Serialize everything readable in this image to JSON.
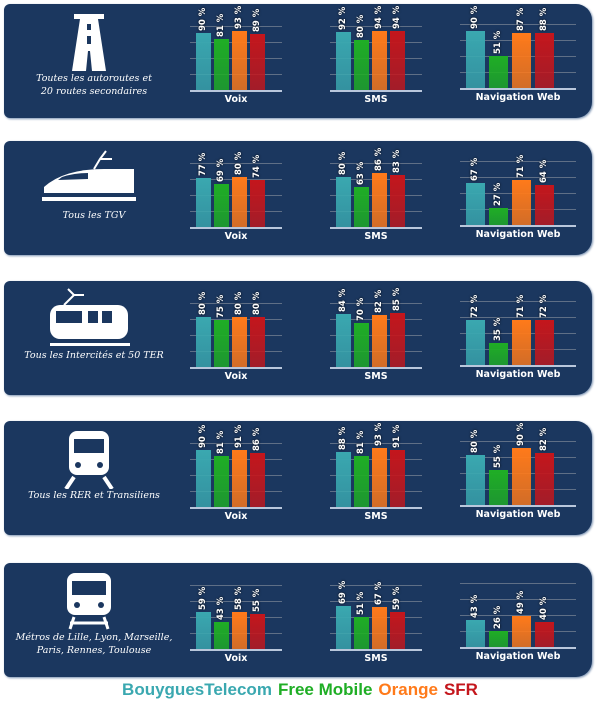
{
  "chart_data": {
    "type": "bar",
    "categories": [
      "Voix",
      "SMS",
      "Navigation Web"
    ],
    "series_names": [
      "BouyguesTelecom",
      "Free Mobile",
      "Orange",
      "SFR"
    ],
    "colors": {
      "BouyguesTelecom": "#3aa8b0",
      "Free Mobile": "#1fae25",
      "Orange": "#ff7a1a",
      "SFR": "#c4161c"
    },
    "ylim": [
      0,
      100
    ],
    "value_suffix": " %",
    "groups": [
      {
        "caption": [
          "Toutes les autoroutes et",
          "20 routes secondaires"
        ],
        "icon": "highway-icon",
        "values": {
          "Voix": [
            90,
            81,
            93,
            89
          ],
          "SMS": [
            92,
            80,
            94,
            94
          ],
          "Navigation Web": [
            90,
            51,
            87,
            88
          ]
        }
      },
      {
        "caption": [
          "Tous les TGV"
        ],
        "icon": "high-speed-train-icon",
        "values": {
          "Voix": [
            77,
            69,
            80,
            74
          ],
          "SMS": [
            80,
            63,
            86,
            83
          ],
          "Navigation Web": [
            67,
            27,
            71,
            64
          ]
        }
      },
      {
        "caption": [
          "Tous les Intercités et 50 TER"
        ],
        "icon": "intercity-train-icon",
        "values": {
          "Voix": [
            80,
            75,
            80,
            80
          ],
          "SMS": [
            84,
            70,
            82,
            85
          ],
          "Navigation Web": [
            72,
            35,
            71,
            72
          ]
        }
      },
      {
        "caption": [
          "Tous les RER et Transiliens"
        ],
        "icon": "rer-train-icon",
        "values": {
          "Voix": [
            90,
            81,
            91,
            86
          ],
          "SMS": [
            88,
            81,
            93,
            91
          ],
          "Navigation Web": [
            80,
            55,
            90,
            82
          ]
        }
      },
      {
        "caption": [
          "Métros de Lille, Lyon, Marseille,",
          "Paris, Rennes, Toulouse"
        ],
        "icon": "metro-icon",
        "values": {
          "Voix": [
            59,
            43,
            58,
            55
          ],
          "SMS": [
            69,
            51,
            67,
            59
          ],
          "Navigation Web": [
            43,
            26,
            49,
            40
          ]
        }
      }
    ]
  },
  "legend": [
    "BouyguesTelecom",
    "Free Mobile",
    "Orange",
    "SFR"
  ]
}
